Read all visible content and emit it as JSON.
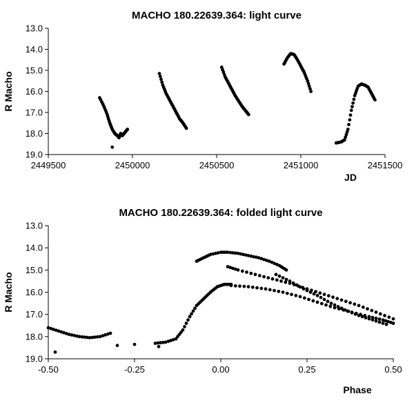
{
  "chart_data": [
    {
      "type": "scatter",
      "title": "MACHO 180.22639.364: light curve",
      "xlabel": "JD",
      "ylabel": "R Macho",
      "xlim": [
        2449500,
        2451500
      ],
      "ylim": [
        13.0,
        19.0
      ],
      "y_inverted": true,
      "grid": false,
      "legend": "none",
      "x_ticks": [
        "2449500",
        "2450000",
        "2450500",
        "2451000",
        "2451500"
      ],
      "y_ticks": [
        "13.0",
        "14.0",
        "15.0",
        "16.0",
        "17.0",
        "18.0",
        "19.0"
      ],
      "segments": [
        {
          "x": [
            2449805,
            2449830,
            2449850,
            2449865,
            2449880,
            2449895,
            2449910,
            2449920,
            2449930,
            2449940,
            2449950,
            2449960,
            2449970
          ],
          "y": [
            16.3,
            16.7,
            17.1,
            17.5,
            17.8,
            18.0,
            18.1,
            18.2,
            18.0,
            18.1,
            18.0,
            17.9,
            17.8
          ]
        },
        {
          "x": [
            2450160,
            2450180,
            2450200,
            2450220,
            2450240,
            2450260,
            2450280,
            2450300,
            2450320
          ],
          "y": [
            15.15,
            15.7,
            16.1,
            16.4,
            16.7,
            17.0,
            17.3,
            17.5,
            17.75
          ]
        },
        {
          "x": [
            2450530,
            2450550,
            2450570,
            2450590,
            2450610,
            2450630,
            2450650,
            2450670,
            2450690
          ],
          "y": [
            14.85,
            15.3,
            15.6,
            15.9,
            16.2,
            16.45,
            16.7,
            16.9,
            17.1
          ]
        },
        {
          "x": [
            2450900,
            2450920,
            2450940,
            2450960,
            2450980,
            2451000,
            2451020,
            2451040,
            2451060
          ],
          "y": [
            14.7,
            14.4,
            14.2,
            14.25,
            14.5,
            14.8,
            15.1,
            15.5,
            16.0
          ]
        },
        {
          "x": [
            2451210,
            2451240,
            2451260,
            2451280,
            2451300,
            2451320,
            2451340,
            2451360,
            2451380,
            2451400,
            2451420,
            2451440
          ],
          "y": [
            18.45,
            18.4,
            18.3,
            17.8,
            16.9,
            16.2,
            15.75,
            15.65,
            15.7,
            15.8,
            16.1,
            16.4
          ]
        }
      ],
      "outliers": [
        {
          "x": 2449880,
          "y": 18.65
        }
      ]
    },
    {
      "type": "scatter",
      "title": "MACHO 180.22639.364: folded light curve",
      "xlabel": "Phase",
      "ylabel": "R Macho",
      "xlim": [
        -0.5,
        0.5
      ],
      "ylim": [
        13.0,
        19.0
      ],
      "y_inverted": true,
      "grid": false,
      "legend": "none",
      "x_ticks": [
        "-0.50",
        "-0.25",
        "0.00",
        "0.25",
        "0.50"
      ],
      "y_ticks": [
        "13.0",
        "14.0",
        "15.0",
        "16.0",
        "17.0",
        "18.0",
        "19.0"
      ],
      "segments": [
        {
          "x": [
            -0.5,
            -0.47,
            -0.44,
            -0.41,
            -0.38,
            -0.35,
            -0.32
          ],
          "y": [
            17.6,
            17.75,
            17.9,
            18.0,
            18.05,
            18.0,
            17.85
          ]
        },
        {
          "x": [
            -0.19,
            -0.16,
            -0.13,
            -0.11,
            -0.09,
            -0.07,
            -0.05,
            -0.03,
            -0.01,
            0.01,
            0.03
          ],
          "y": [
            18.3,
            18.25,
            18.1,
            17.7,
            17.1,
            16.6,
            16.3,
            16.0,
            15.75,
            15.65,
            15.65
          ]
        },
        {
          "x": [
            0.03,
            0.08,
            0.13,
            0.18,
            0.23,
            0.28,
            0.33,
            0.38,
            0.43,
            0.47,
            0.5
          ],
          "y": [
            15.7,
            15.75,
            15.85,
            16.0,
            16.2,
            16.45,
            16.7,
            16.9,
            17.1,
            17.25,
            17.4
          ]
        },
        {
          "x": [
            0.02,
            0.05,
            0.1,
            0.15,
            0.2,
            0.25,
            0.3,
            0.35,
            0.4,
            0.45,
            0.5
          ],
          "y": [
            14.85,
            15.0,
            15.2,
            15.4,
            15.6,
            15.85,
            16.1,
            16.35,
            16.6,
            16.9,
            17.2
          ]
        },
        {
          "x": [
            -0.07,
            -0.05,
            -0.03,
            0.0,
            0.02,
            0.05,
            0.08,
            0.11,
            0.14,
            0.17,
            0.19
          ],
          "y": [
            14.6,
            14.45,
            14.3,
            14.2,
            14.2,
            14.25,
            14.35,
            14.45,
            14.6,
            14.8,
            15.0
          ]
        },
        {
          "x": [
            0.16,
            0.2,
            0.24,
            0.28,
            0.32,
            0.36,
            0.4,
            0.44,
            0.48
          ],
          "y": [
            15.2,
            15.5,
            15.85,
            16.15,
            16.5,
            16.8,
            17.05,
            17.25,
            17.45
          ]
        }
      ],
      "outliers": [
        {
          "x": -0.48,
          "y": 18.7
        },
        {
          "x": -0.3,
          "y": 18.4
        },
        {
          "x": -0.25,
          "y": 18.35
        },
        {
          "x": -0.18,
          "y": 18.45
        }
      ]
    }
  ]
}
